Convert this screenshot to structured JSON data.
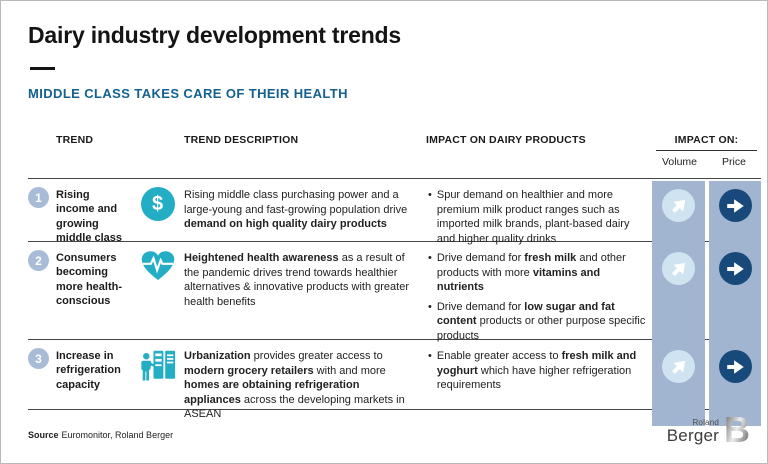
{
  "slide": {
    "title": "Dairy industry development trends",
    "subtitle": "MIDDLE CLASS TAKES CARE OF THEIR HEALTH",
    "source": {
      "label": "Source",
      "text": "Euromonitor, Roland Berger"
    },
    "logo": {
      "roland": "Roland",
      "berger": "Berger",
      "letter": "B"
    }
  },
  "table": {
    "headers": {
      "trend": "TREND",
      "description": "TREND DESCRIPTION",
      "impact": "IMPACT ON DAIRY PRODUCTS",
      "impact_on": "IMPACT ON:",
      "volume": "Volume",
      "price": "Price"
    },
    "rows": [
      {
        "number": "1",
        "icon": "dollar-icon",
        "trend": "Rising income and growing middle class",
        "description": [
          {
            "t": "Rising middle class purchasing power and a large-young and fast-growing population drive ",
            "b": false
          },
          {
            "t": "demand on high quality dairy products",
            "b": true
          }
        ],
        "impacts": [
          [
            {
              "t": "Spur demand on healthier and more premium milk product ranges such as imported milk brands, plant-based dairy and higher quality drinks",
              "b": false
            }
          ]
        ],
        "volume_trend": "up",
        "price_trend": "flat"
      },
      {
        "number": "2",
        "icon": "heart-pulse-icon",
        "trend": "Consumers becoming more health-conscious",
        "description": [
          {
            "t": "Heightened health awareness",
            "b": true
          },
          {
            "t": " as a result of the pandemic drives trend towards healthier alternatives & innovative products with greater health benefits",
            "b": false
          }
        ],
        "impacts": [
          [
            {
              "t": "Drive demand for ",
              "b": false
            },
            {
              "t": "fresh milk",
              "b": true
            },
            {
              "t": " and other products with more ",
              "b": false
            },
            {
              "t": "vitamins and nutrients",
              "b": true
            }
          ],
          [
            {
              "t": "Drive demand for ",
              "b": false
            },
            {
              "t": "low sugar and fat content",
              "b": true
            },
            {
              "t": " products or other purpose specific products",
              "b": false
            }
          ]
        ],
        "volume_trend": "up",
        "price_trend": "flat"
      },
      {
        "number": "3",
        "icon": "refrigerator-icon",
        "trend": "Increase in refrigeration capacity",
        "description": [
          {
            "t": "Urbanization",
            "b": true
          },
          {
            "t": " provides greater access to ",
            "b": false
          },
          {
            "t": "modern grocery retailers",
            "b": true
          },
          {
            "t": " with and more ",
            "b": false
          },
          {
            "t": "homes are obtaining refrigeration appliances",
            "b": true
          },
          {
            "t": " across the developing markets in ASEAN",
            "b": false
          }
        ],
        "impacts": [
          [
            {
              "t": "Enable greater access to ",
              "b": false
            },
            {
              "t": "fresh milk and yoghurt",
              "b": true
            },
            {
              "t": " which have higher refrigeration requirements",
              "b": false
            }
          ]
        ],
        "volume_trend": "up",
        "price_trend": "flat"
      }
    ]
  },
  "bullet_glyph": "•",
  "colors": {
    "subtitle_blue": "#14618F",
    "icon_teal": "#24AEC6",
    "column_blue": "#A1B4D0",
    "number_circle_blue": "#A8BCD8",
    "volume_circle_light": "#CFE3F0",
    "price_circle_navy": "#17497A"
  }
}
